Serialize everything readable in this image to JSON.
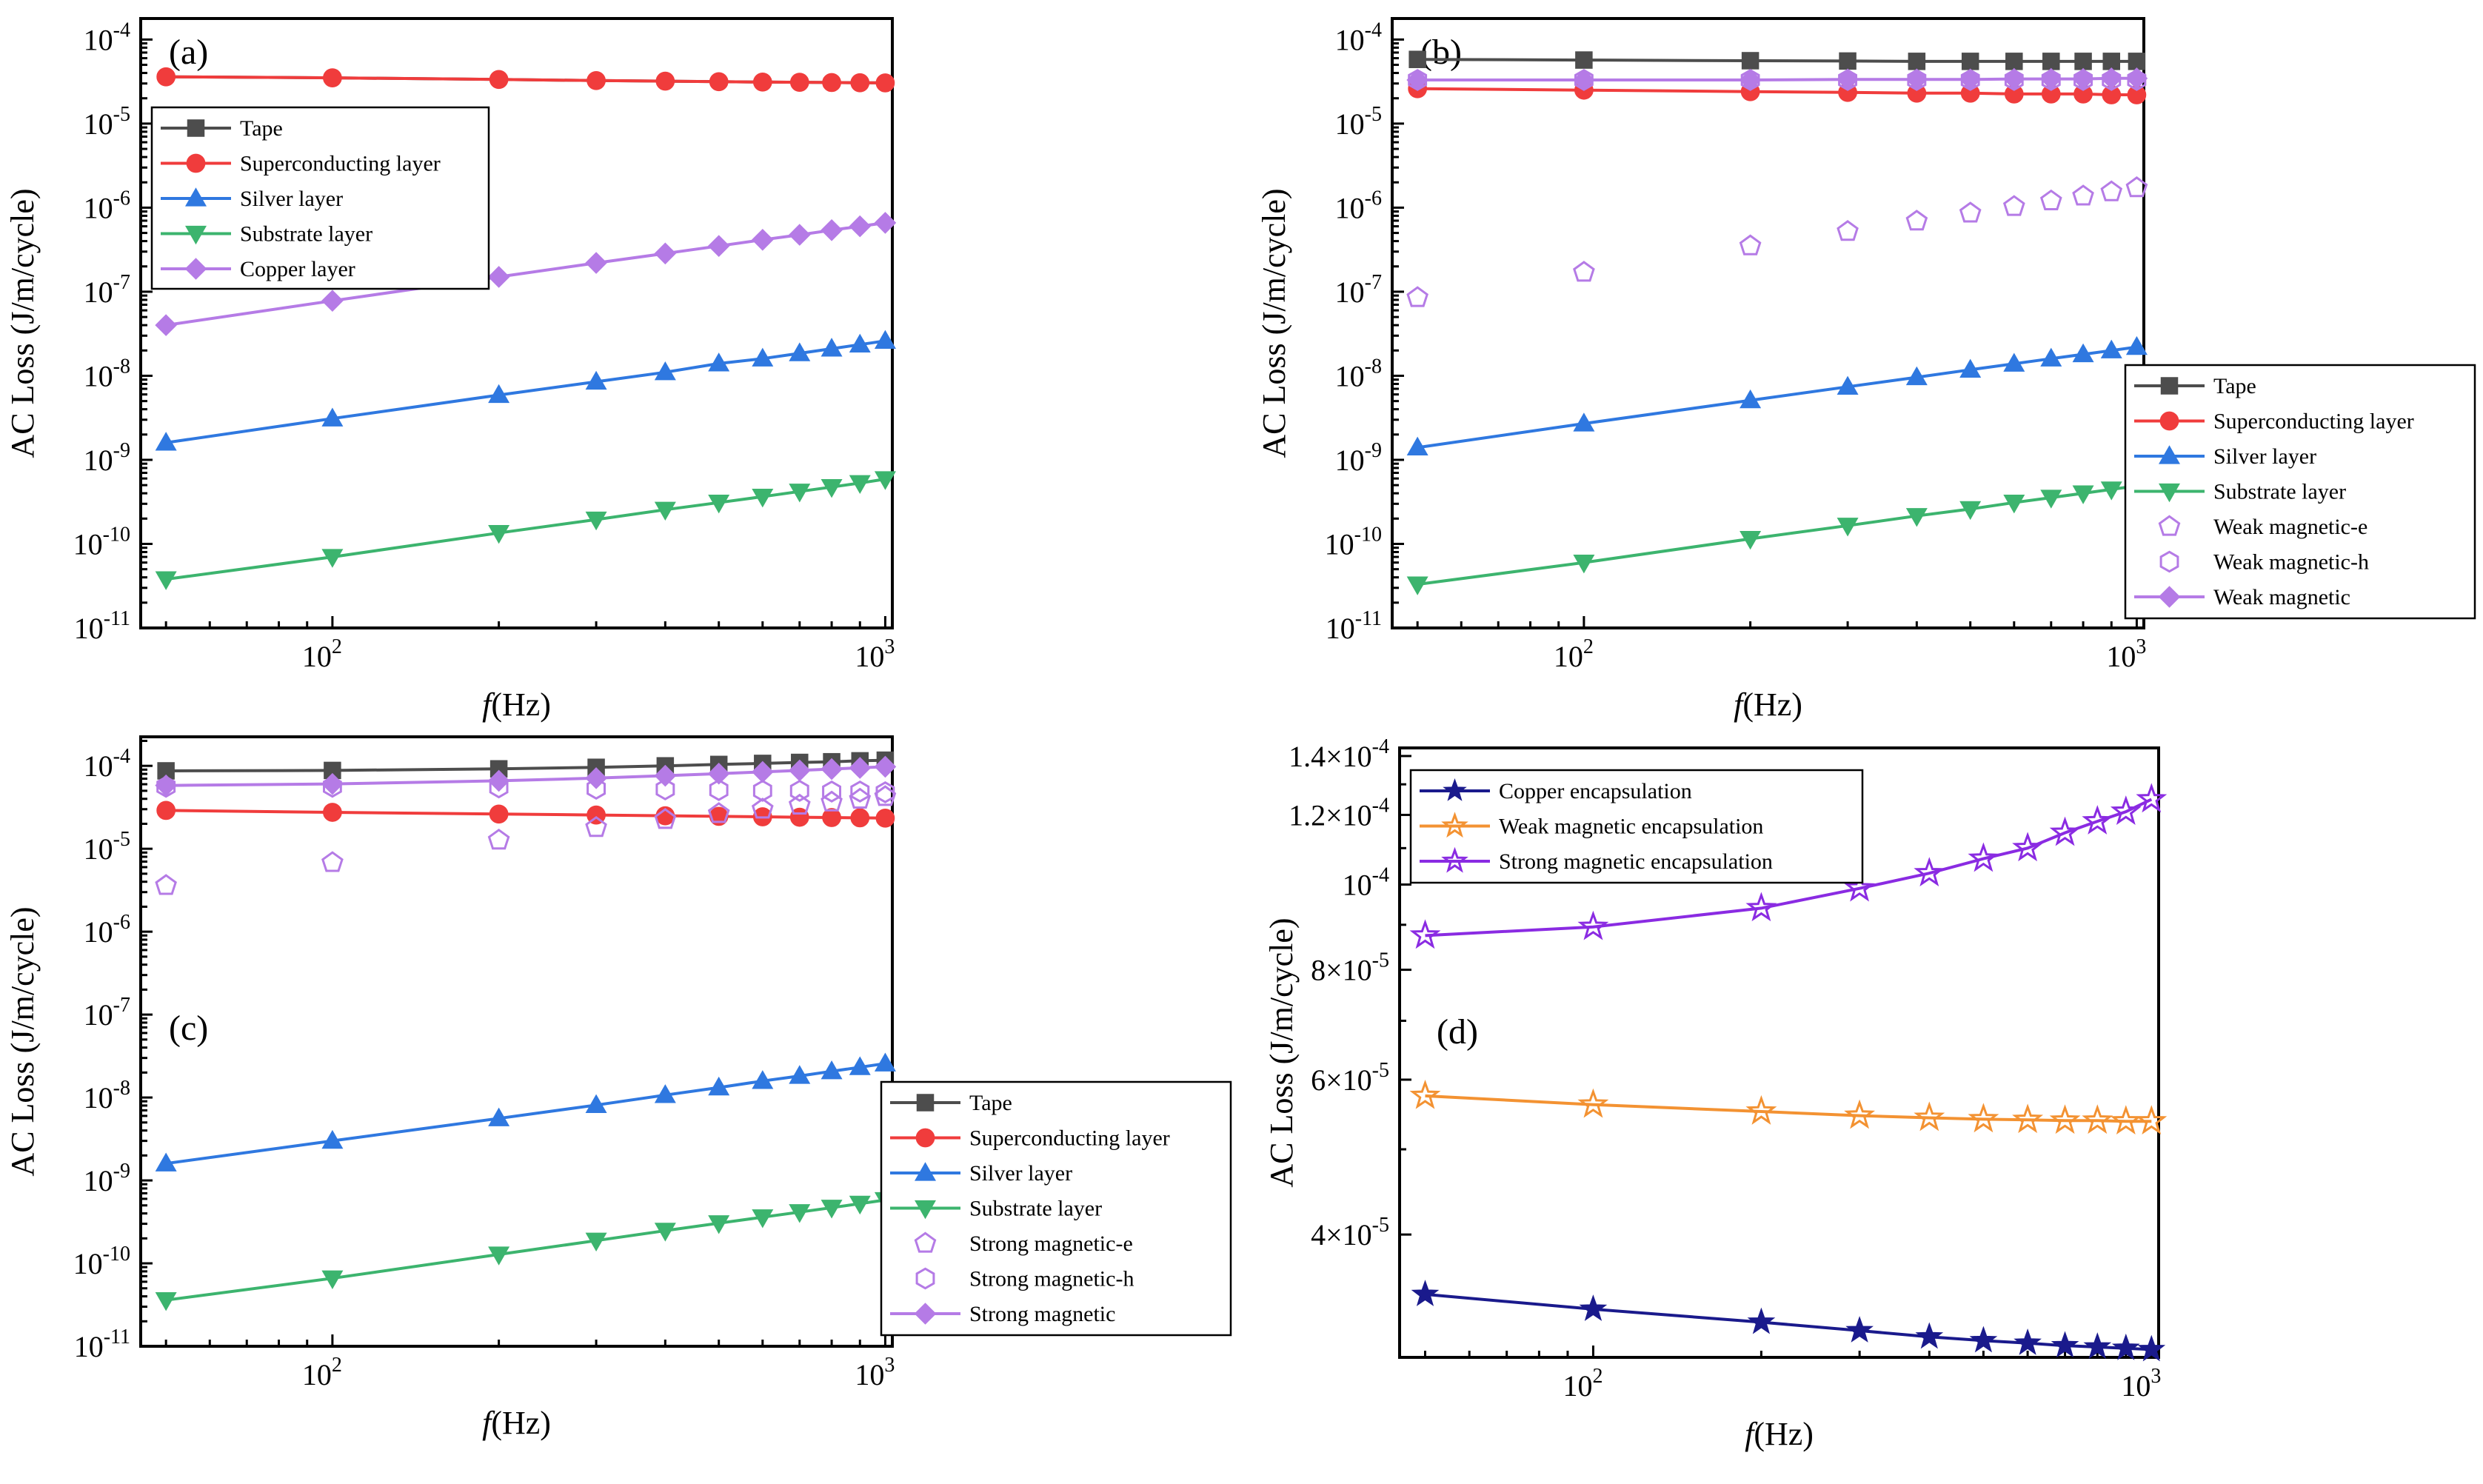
{
  "figure": {
    "panels_count": 4
  },
  "chart_data": [
    {
      "type": "line",
      "panel_label": "(a)",
      "xscale": "log",
      "yscale": "log",
      "xlabel_italic": "f",
      "xlabel_unit": "(Hz)",
      "ylabel": "AC Loss (J/m/cycle)",
      "xlim": [
        45,
        1030
      ],
      "ylim_log10": [
        -11,
        -3.75
      ],
      "x_ticks": [
        {
          "value": 100,
          "base": "10",
          "exp": "2"
        },
        {
          "value": 1000,
          "base": "10",
          "exp": "3"
        }
      ],
      "y_ticks": [
        {
          "value": -11,
          "base": "10",
          "exp": "-11"
        },
        {
          "value": -10,
          "base": "10",
          "exp": "-10"
        },
        {
          "value": -9,
          "base": "10",
          "exp": "-9"
        },
        {
          "value": -8,
          "base": "10",
          "exp": "-8"
        },
        {
          "value": -7,
          "base": "10",
          "exp": "-7"
        },
        {
          "value": -6,
          "base": "10",
          "exp": "-6"
        },
        {
          "value": -5,
          "base": "10",
          "exp": "-5"
        },
        {
          "value": -4,
          "base": "10",
          "exp": "-4"
        }
      ],
      "legend_position": "upper-left",
      "x": [
        50,
        100,
        200,
        300,
        400,
        500,
        600,
        700,
        800,
        900,
        1000
      ],
      "series": [
        {
          "name": "Tape",
          "color": "#4d4d4d",
          "marker": "square",
          "filled": true,
          "line": true,
          "show_points": false,
          "values": [
            3.6e-05,
            3.5e-05,
            3.35e-05,
            3.25e-05,
            3.2e-05,
            3.15e-05,
            3.12e-05,
            3.1e-05,
            3.08e-05,
            3.06e-05,
            3.05e-05
          ]
        },
        {
          "name": "Superconducting layer",
          "color": "#f03c3c",
          "marker": "circle",
          "filled": true,
          "line": true,
          "show_points": true,
          "values": [
            3.6e-05,
            3.5e-05,
            3.35e-05,
            3.25e-05,
            3.2e-05,
            3.15e-05,
            3.12e-05,
            3.1e-05,
            3.08e-05,
            3.06e-05,
            3.05e-05
          ]
        },
        {
          "name": "Silver layer",
          "color": "#2f78e0",
          "marker": "triangle-up",
          "filled": true,
          "line": true,
          "show_points": true,
          "values": [
            1.6e-09,
            3.1e-09,
            5.9e-09,
            8.5e-09,
            1.1e-08,
            1.4e-08,
            1.6e-08,
            1.85e-08,
            2.1e-08,
            2.35e-08,
            2.6e-08
          ]
        },
        {
          "name": "Substrate layer",
          "color": "#3cb46e",
          "marker": "triangle-down",
          "filled": true,
          "line": true,
          "show_points": true,
          "values": [
            3.8e-11,
            7e-11,
            1.35e-10,
            1.95e-10,
            2.55e-10,
            3.1e-10,
            3.65e-10,
            4.2e-10,
            4.75e-10,
            5.3e-10,
            5.9e-10
          ]
        },
        {
          "name": "Copper layer",
          "color": "#b57be6",
          "marker": "diamond",
          "filled": true,
          "line": true,
          "show_points": true,
          "values": [
            4e-08,
            7.8e-08,
            1.5e-07,
            2.2e-07,
            2.85e-07,
            3.5e-07,
            4.15e-07,
            4.75e-07,
            5.4e-07,
            6e-07,
            6.6e-07
          ]
        }
      ]
    },
    {
      "type": "line",
      "panel_label": "(b)",
      "xscale": "log",
      "yscale": "log",
      "xlabel_italic": "f",
      "xlabel_unit": "(Hz)",
      "ylabel": "AC Loss (J/m/cycle)",
      "xlim": [
        45,
        1030
      ],
      "ylim_log10": [
        -11,
        -3.75
      ],
      "x_ticks": [
        {
          "value": 100,
          "base": "10",
          "exp": "2"
        },
        {
          "value": 1000,
          "base": "10",
          "exp": "3"
        }
      ],
      "y_ticks": [
        {
          "value": -11,
          "base": "10",
          "exp": "-11"
        },
        {
          "value": -10,
          "base": "10",
          "exp": "-10"
        },
        {
          "value": -9,
          "base": "10",
          "exp": "-9"
        },
        {
          "value": -8,
          "base": "10",
          "exp": "-8"
        },
        {
          "value": -7,
          "base": "10",
          "exp": "-7"
        },
        {
          "value": -6,
          "base": "10",
          "exp": "-6"
        },
        {
          "value": -5,
          "base": "10",
          "exp": "-5"
        },
        {
          "value": -4,
          "base": "10",
          "exp": "-4"
        }
      ],
      "legend_position": "lower-right-outside",
      "x": [
        50,
        100,
        200,
        300,
        400,
        500,
        600,
        700,
        800,
        900,
        1000
      ],
      "series": [
        {
          "name": "Tape",
          "color": "#4d4d4d",
          "marker": "square",
          "filled": true,
          "line": true,
          "show_points": true,
          "values": [
            5.8e-05,
            5.7e-05,
            5.6e-05,
            5.55e-05,
            5.5e-05,
            5.5e-05,
            5.5e-05,
            5.5e-05,
            5.5e-05,
            5.5e-05,
            5.5e-05
          ]
        },
        {
          "name": "Superconducting layer",
          "color": "#f03c3c",
          "marker": "circle",
          "filled": true,
          "line": true,
          "show_points": true,
          "values": [
            2.6e-05,
            2.5e-05,
            2.4e-05,
            2.35e-05,
            2.3e-05,
            2.3e-05,
            2.25e-05,
            2.25e-05,
            2.25e-05,
            2.2e-05,
            2.2e-05
          ]
        },
        {
          "name": "Silver layer",
          "color": "#2f78e0",
          "marker": "triangle-up",
          "filled": true,
          "line": true,
          "show_points": true,
          "values": [
            1.4e-09,
            2.7e-09,
            5.1e-09,
            7.4e-09,
            9.6e-09,
            1.18e-08,
            1.39e-08,
            1.6e-08,
            1.8e-08,
            2e-08,
            2.2e-08
          ]
        },
        {
          "name": "Substrate layer",
          "color": "#3cb46e",
          "marker": "triangle-down",
          "filled": true,
          "line": true,
          "show_points": true,
          "values": [
            3.3e-11,
            6e-11,
            1.15e-10,
            1.65e-10,
            2.15e-10,
            2.6e-10,
            3.1e-10,
            3.55e-10,
            4e-10,
            4.45e-10,
            4.9e-10
          ]
        },
        {
          "name": "Weak magnetic-e",
          "color": "#b57be6",
          "marker": "pentagon",
          "filled": false,
          "line": false,
          "show_points": true,
          "values": [
            8.5e-08,
            1.7e-07,
            3.5e-07,
            5.2e-07,
            6.9e-07,
            8.6e-07,
            1.03e-06,
            1.2e-06,
            1.37e-06,
            1.54e-06,
            1.72e-06
          ]
        },
        {
          "name": "Weak magnetic-h",
          "color": "#b57be6",
          "marker": "hexagon",
          "filled": false,
          "line": false,
          "show_points": true,
          "values": [
            3.3e-05,
            3.3e-05,
            3.3e-05,
            3.3e-05,
            3.3e-05,
            3.3e-05,
            3.3e-05,
            3.3e-05,
            3.3e-05,
            3.3e-05,
            3.3e-05
          ]
        },
        {
          "name": "Weak magnetic",
          "color": "#b57be6",
          "marker": "diamond",
          "filled": true,
          "line": true,
          "show_points": true,
          "values": [
            3.3e-05,
            3.3e-05,
            3.3e-05,
            3.35e-05,
            3.35e-05,
            3.35e-05,
            3.4e-05,
            3.4e-05,
            3.4e-05,
            3.45e-05,
            3.45e-05
          ]
        }
      ]
    },
    {
      "type": "line",
      "panel_label": "(c)",
      "xscale": "log",
      "yscale": "log",
      "xlabel_italic": "f",
      "xlabel_unit": "(Hz)",
      "ylabel": "AC Loss (J/m/cycle)",
      "xlim": [
        45,
        1030
      ],
      "ylim_log10": [
        -11,
        -3.65
      ],
      "x_ticks": [
        {
          "value": 100,
          "base": "10",
          "exp": "2"
        },
        {
          "value": 1000,
          "base": "10",
          "exp": "3"
        }
      ],
      "y_ticks": [
        {
          "value": -11,
          "base": "10",
          "exp": "-11"
        },
        {
          "value": -10,
          "base": "10",
          "exp": "-10"
        },
        {
          "value": -9,
          "base": "10",
          "exp": "-9"
        },
        {
          "value": -8,
          "base": "10",
          "exp": "-8"
        },
        {
          "value": -7,
          "base": "10",
          "exp": "-7"
        },
        {
          "value": -6,
          "base": "10",
          "exp": "-6"
        },
        {
          "value": -5,
          "base": "10",
          "exp": "-5"
        },
        {
          "value": -4,
          "base": "10",
          "exp": "-4"
        }
      ],
      "legend_position": "lower-right-outside",
      "x": [
        50,
        100,
        200,
        300,
        400,
        500,
        600,
        700,
        800,
        900,
        1000
      ],
      "series": [
        {
          "name": "Tape",
          "color": "#4d4d4d",
          "marker": "square",
          "filled": true,
          "line": true,
          "show_points": true,
          "values": [
            8.7e-05,
            8.8e-05,
            9.2e-05,
            9.6e-05,
            0.0001,
            0.000104,
            0.000107,
            0.00011,
            0.000112,
            0.000115,
            0.000117
          ]
        },
        {
          "name": "Superconducting layer",
          "color": "#f03c3c",
          "marker": "circle",
          "filled": true,
          "line": true,
          "show_points": true,
          "values": [
            2.9e-05,
            2.75e-05,
            2.62e-05,
            2.55e-05,
            2.5e-05,
            2.46e-05,
            2.43e-05,
            2.4e-05,
            2.38e-05,
            2.36e-05,
            2.34e-05
          ]
        },
        {
          "name": "Silver layer",
          "color": "#2f78e0",
          "marker": "triangle-up",
          "filled": true,
          "line": true,
          "show_points": true,
          "values": [
            1.6e-09,
            3e-09,
            5.6e-09,
            8.1e-09,
            1.07e-08,
            1.32e-08,
            1.58e-08,
            1.82e-08,
            2.07e-08,
            2.32e-08,
            2.57e-08
          ]
        },
        {
          "name": "Substrate layer",
          "color": "#3cb46e",
          "marker": "triangle-down",
          "filled": true,
          "line": true,
          "show_points": true,
          "values": [
            3.6e-11,
            6.6e-11,
            1.28e-10,
            1.88e-10,
            2.48e-10,
            3.05e-10,
            3.6e-10,
            4.15e-10,
            4.7e-10,
            5.25e-10,
            5.8e-10
          ]
        },
        {
          "name": "Strong magnetic-e",
          "color": "#b57be6",
          "marker": "pentagon",
          "filled": false,
          "line": false,
          "show_points": true,
          "values": [
            3.6e-06,
            6.8e-06,
            1.27e-05,
            1.8e-05,
            2.25e-05,
            2.65e-05,
            3e-05,
            3.35e-05,
            3.65e-05,
            3.95e-05,
            4.25e-05
          ]
        },
        {
          "name": "Strong magnetic-h",
          "color": "#b57be6",
          "marker": "hexagon",
          "filled": false,
          "line": false,
          "show_points": true,
          "values": [
            5.6e-05,
            5.6e-05,
            5.5e-05,
            5.3e-05,
            5.2e-05,
            5.1e-05,
            5e-05,
            5e-05,
            4.9e-05,
            4.9e-05,
            4.8e-05
          ]
        },
        {
          "name": "Strong magnetic",
          "color": "#b57be6",
          "marker": "diamond",
          "filled": true,
          "line": true,
          "show_points": true,
          "values": [
            5.8e-05,
            6.05e-05,
            6.6e-05,
            7.1e-05,
            7.6e-05,
            8.05e-05,
            8.45e-05,
            8.8e-05,
            9.15e-05,
            9.45e-05,
            9.75e-05
          ]
        }
      ]
    },
    {
      "type": "line",
      "panel_label": "(d)",
      "xscale": "log",
      "yscale": "log",
      "xlabel_italic": "f",
      "xlabel_unit": "(Hz)",
      "ylabel": "AC Loss (J/m/cycle)",
      "xlim": [
        45,
        1030
      ],
      "ylim": [
        2.9e-05,
        0.000143
      ],
      "x_ticks": [
        {
          "value": 100,
          "base": "10",
          "exp": "2"
        },
        {
          "value": 1000,
          "base": "10",
          "exp": "3"
        }
      ],
      "y_ticks": [
        {
          "value": 4e-05,
          "mant": "4×",
          "base": "10",
          "exp": "-5"
        },
        {
          "value": 6e-05,
          "mant": "6×",
          "base": "10",
          "exp": "-5"
        },
        {
          "value": 8e-05,
          "mant": "8×",
          "base": "10",
          "exp": "-5"
        },
        {
          "value": 0.0001,
          "mant": "",
          "base": "10",
          "exp": "-4"
        },
        {
          "value": 0.00012,
          "mant": "1.2×",
          "base": "10",
          "exp": "-4"
        },
        {
          "value": 0.00014,
          "mant": "1.4×",
          "base": "10",
          "exp": "-4"
        }
      ],
      "legend_position": "upper-left",
      "x": [
        50,
        100,
        200,
        300,
        400,
        500,
        600,
        700,
        800,
        900,
        1000
      ],
      "series": [
        {
          "name": "Copper encapsulation",
          "color": "#1a1a8c",
          "marker": "star",
          "filled": true,
          "line": true,
          "show_points": true,
          "values": [
            3.42e-05,
            3.29e-05,
            3.18e-05,
            3.11e-05,
            3.06e-05,
            3.03e-05,
            3.01e-05,
            2.99e-05,
            2.98e-05,
            2.97e-05,
            2.96e-05
          ]
        },
        {
          "name": "Weak magnetic encapsulation",
          "color": "#f39232",
          "marker": "star",
          "filled": false,
          "line": true,
          "show_points": true,
          "values": [
            5.75e-05,
            5.62e-05,
            5.52e-05,
            5.46e-05,
            5.43e-05,
            5.41e-05,
            5.4e-05,
            5.39e-05,
            5.39e-05,
            5.38e-05,
            5.38e-05
          ]
        },
        {
          "name": "Strong magnetic encapsulation",
          "color": "#8a2be2",
          "marker": "star",
          "filled": false,
          "line": true,
          "show_points": true,
          "values": [
            8.75e-05,
            8.95e-05,
            9.4e-05,
            9.9e-05,
            0.000103,
            0.000107,
            0.00011,
            0.0001145,
            0.000118,
            0.000121,
            0.000125
          ]
        }
      ]
    }
  ]
}
